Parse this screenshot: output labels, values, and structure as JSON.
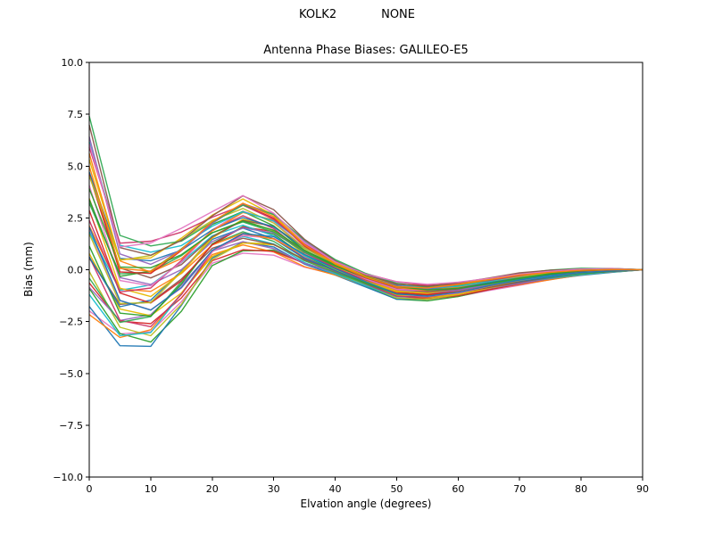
{
  "header": {
    "station": "KOLK2",
    "solution": "NONE"
  },
  "chart_data": {
    "type": "line",
    "title": "Antenna Phase Biases: GALILEO-E5",
    "suptitle": [
      "KOLK2",
      "NONE"
    ],
    "xlabel": "Elvation angle (degrees)",
    "ylabel": "Bias (mm)",
    "xlim": [
      0,
      90
    ],
    "ylim": [
      -10,
      10
    ],
    "grid": false,
    "legend": "none",
    "xticks": [
      {
        "v": 0,
        "label": "0"
      },
      {
        "v": 10,
        "label": "10"
      },
      {
        "v": 20,
        "label": "20"
      },
      {
        "v": 30,
        "label": "30"
      },
      {
        "v": 40,
        "label": "40"
      },
      {
        "v": 50,
        "label": "50"
      },
      {
        "v": 60,
        "label": "60"
      },
      {
        "v": 70,
        "label": "70"
      },
      {
        "v": 80,
        "label": "80"
      },
      {
        "v": 90,
        "label": "90"
      }
    ],
    "yticks": [
      {
        "v": 10,
        "label": "10.0"
      },
      {
        "v": 7.5,
        "label": "7.5"
      },
      {
        "v": 5,
        "label": "5.0"
      },
      {
        "v": 2.5,
        "label": "2.5"
      },
      {
        "v": 0,
        "label": "0.0"
      },
      {
        "v": -2.5,
        "label": "−2.5"
      },
      {
        "v": -5,
        "label": "−5.0"
      },
      {
        "v": -7.5,
        "label": "−7.5"
      },
      {
        "v": -10,
        "label": "−10.0"
      }
    ],
    "x": [
      0,
      5,
      10,
      15,
      20,
      25,
      30,
      35,
      40,
      45,
      50,
      55,
      60,
      65,
      70,
      75,
      80,
      85,
      90
    ],
    "mean": [
      2.5,
      -1.0,
      -1.1,
      0.0,
      1.5,
      2.2,
      1.8,
      0.8,
      0.1,
      -0.5,
      -1.0,
      -1.1,
      -0.95,
      -0.7,
      -0.45,
      -0.25,
      -0.1,
      -0.03,
      0.0
    ],
    "upper": [
      7.6,
      1.8,
      1.6,
      2.0,
      2.8,
      3.6,
      2.9,
      1.5,
      0.5,
      -0.15,
      -0.55,
      -0.7,
      -0.6,
      -0.4,
      -0.15,
      0.0,
      0.08,
      0.07,
      0.0
    ],
    "lower": [
      -2.6,
      -3.8,
      -3.8,
      -2.0,
      0.2,
      0.8,
      0.7,
      0.1,
      -0.3,
      -0.85,
      -1.45,
      -1.5,
      -1.3,
      -1.0,
      -0.75,
      -0.5,
      -0.28,
      -0.13,
      0.0
    ],
    "n_lines": 40,
    "line_offsets": [
      -1,
      -0.96,
      -0.9,
      -0.85,
      -0.8,
      -0.74,
      -0.68,
      -0.62,
      -0.56,
      -0.5,
      -0.45,
      -0.4,
      -0.34,
      -0.28,
      -0.22,
      -0.16,
      -0.1,
      -0.05,
      0.0,
      0.05,
      0.1,
      0.16,
      0.22,
      0.28,
      0.34,
      0.4,
      0.45,
      0.5,
      0.56,
      0.62,
      0.68,
      0.74,
      0.8,
      0.85,
      0.9,
      0.96,
      1.0,
      0.3,
      -0.3,
      0.62
    ],
    "jitter": 0.18,
    "palette": [
      "#e377c2",
      "#2ca02c",
      "#1f77b4",
      "#ff7f0e",
      "#d62728",
      "#bcbd22",
      "#17becf",
      "#9467bd",
      "#e6b800",
      "#cc3366",
      "#33aa55",
      "#8c564b"
    ]
  }
}
